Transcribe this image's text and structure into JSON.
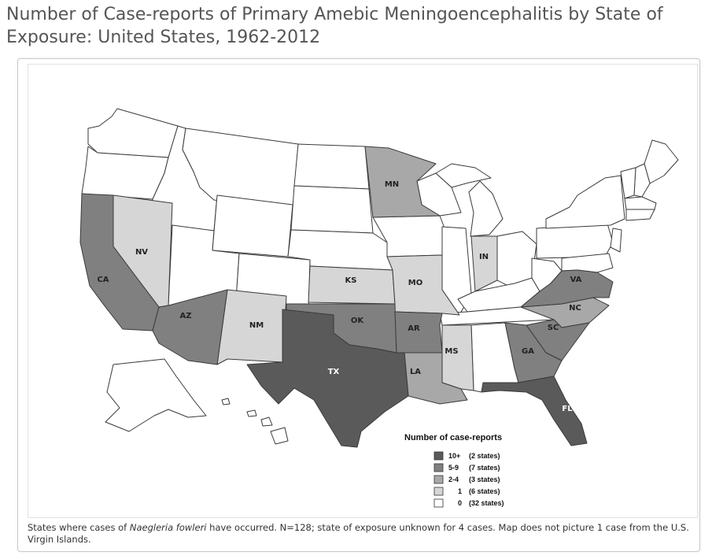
{
  "title": "Number of Case-reports of Primary Amebic Meningoencephalitis by State of Exposure: United States, 1962-2012",
  "caption": {
    "before": "States where cases of ",
    "organism": "Naegleria fowleri",
    "after": " have occurred. N=128; state of exposure unknown for 4 cases. Map does not picture 1 case from the U.S. Virgin Islands."
  },
  "legend": {
    "title": "Number of case-reports",
    "items": [
      {
        "range": "10+",
        "count": "(2 states)",
        "color": "#5a5a5a"
      },
      {
        "range": "5-9",
        "count": "(7 states)",
        "color": "#808080"
      },
      {
        "range": "2-4",
        "count": "(3 states)",
        "color": "#a8a8a8"
      },
      {
        "range": "1",
        "count": "(6 states)",
        "color": "#d6d6d6"
      },
      {
        "range": "0",
        "count": "(32 states)",
        "color": "#ffffff"
      }
    ]
  },
  "state_labels": {
    "mn": "MN",
    "nv": "NV",
    "in": "IN",
    "ca": "CA",
    "ks": "KS",
    "mo": "MO",
    "va": "VA",
    "nc": "NC",
    "az": "AZ",
    "nm": "NM",
    "ok": "OK",
    "ar": "AR",
    "sc": "SC",
    "ga": "GA",
    "ms": "MS",
    "tx": "TX",
    "la": "LA",
    "fl": "FL"
  },
  "state_categories": {
    "TX": "10+",
    "FL": "10+",
    "CA": "5-9",
    "AZ": "5-9",
    "OK": "5-9",
    "AR": "5-9",
    "VA": "5-9",
    "SC": "5-9",
    "GA": "5-9",
    "MN": "2-4",
    "NC": "2-4",
    "LA": "2-4",
    "NV": "1",
    "NM": "1",
    "KS": "1",
    "MO": "1",
    "IN": "1",
    "MS": "1"
  },
  "colors": {
    "c10": "#5a5a5a",
    "c5": "#808080",
    "c2": "#a8a8a8",
    "c1": "#d6d6d6",
    "c0": "#ffffff",
    "label_light": "#ffffff",
    "label_dark": "#222222",
    "border": "#3a3a3a"
  }
}
